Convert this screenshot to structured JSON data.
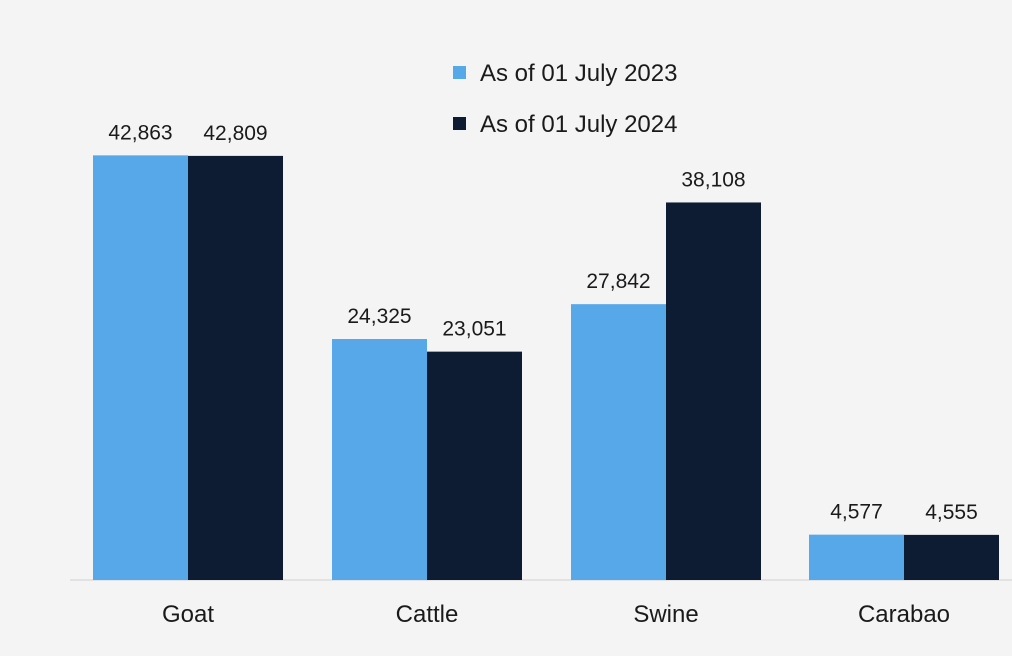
{
  "chart_data": {
    "type": "bar",
    "title": "",
    "xlabel": "",
    "ylabel": "",
    "categories": [
      "Goat",
      "Cattle",
      "Swine",
      "Carabao"
    ],
    "series": [
      {
        "name": "As of 01 July 2023",
        "color": "#56a8e8",
        "values": [
          42863,
          24325,
          27842,
          4577
        ],
        "labels": [
          "42,863",
          "24,325",
          "27,842",
          "4,577"
        ]
      },
      {
        "name": "As of 01 July 2024",
        "color": "#0d1b33",
        "values": [
          42809,
          23051,
          38108,
          4555
        ],
        "labels": [
          "42,809",
          "23,051",
          "38,108",
          "4,555"
        ]
      }
    ],
    "ylim": [
      0,
      43000
    ],
    "grid": false,
    "legend": "top-center",
    "background": "#f4f4f4"
  }
}
